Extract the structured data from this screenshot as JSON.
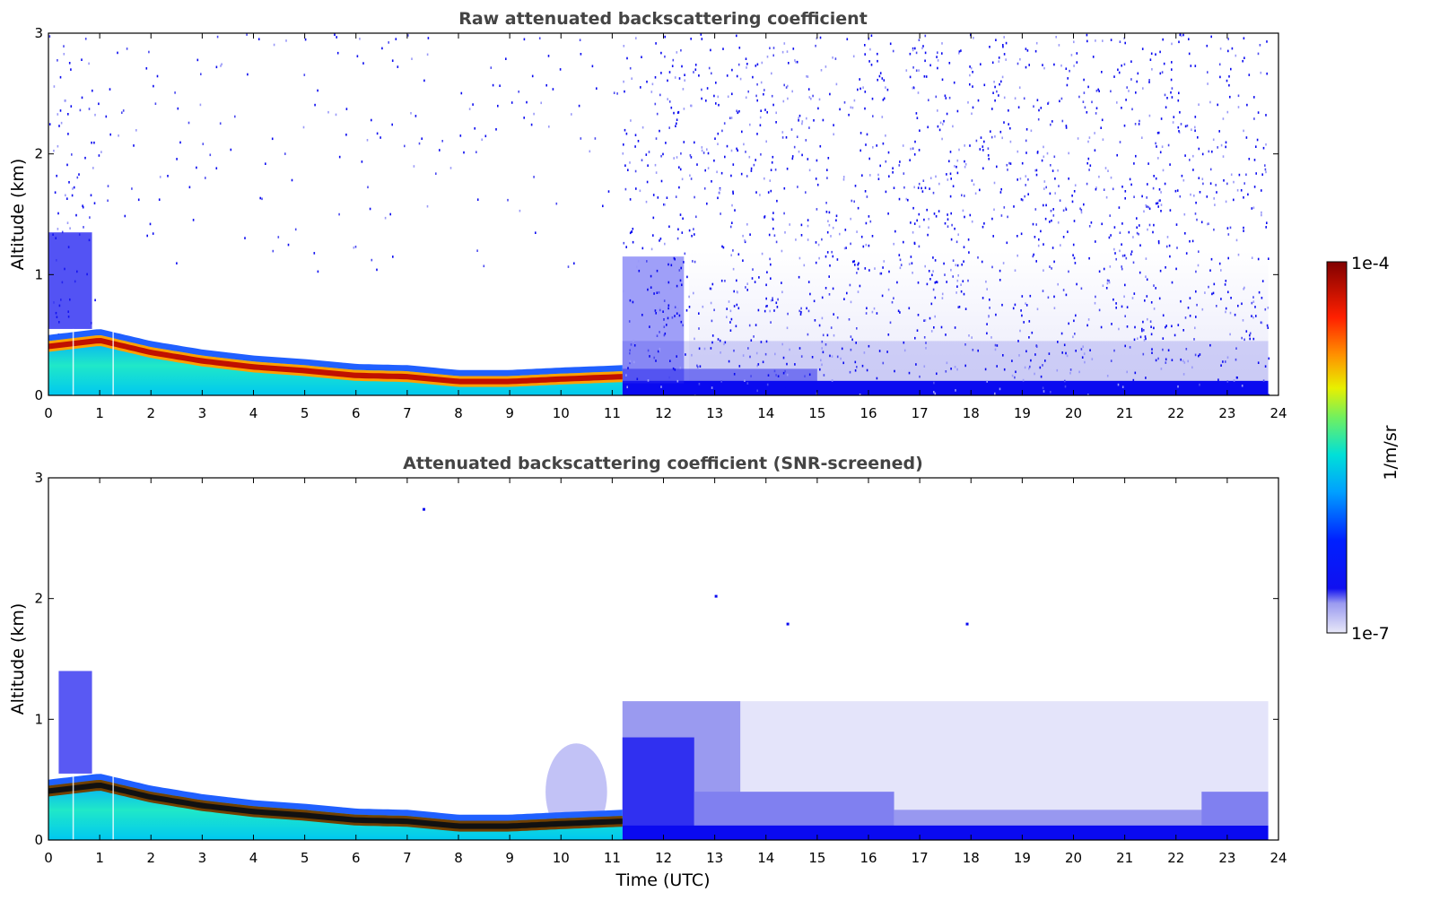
{
  "chart_data": [
    {
      "type": "heatmap",
      "title": "Raw attenuated backscattering coefficient",
      "xlabel": "",
      "ylabel": "Altitude (km)",
      "xlim": [
        0,
        24
      ],
      "ylim": [
        0,
        3
      ],
      "x_ticks": [
        "0",
        "1",
        "2",
        "3",
        "4",
        "5",
        "6",
        "7",
        "8",
        "9",
        "10",
        "11",
        "12",
        "13",
        "14",
        "15",
        "16",
        "17",
        "18",
        "19",
        "20",
        "21",
        "22",
        "23",
        "24"
      ],
      "y_ticks": [
        "0",
        "1",
        "2",
        "3"
      ],
      "features": {
        "boundary_layer_top_km": [
          [
            0.0,
            0.45
          ],
          [
            1.0,
            0.5
          ],
          [
            2.0,
            0.4
          ],
          [
            3.0,
            0.33
          ],
          [
            4.0,
            0.28
          ],
          [
            5.0,
            0.25
          ],
          [
            6.0,
            0.21
          ],
          [
            7.0,
            0.2
          ],
          [
            8.0,
            0.16
          ],
          [
            9.0,
            0.16
          ],
          [
            10.0,
            0.18
          ],
          [
            11.2,
            0.2
          ]
        ],
        "noise_transition_hour": 11.2,
        "data_end_hour": 23.8
      }
    },
    {
      "type": "heatmap",
      "title": "Attenuated backscattering coefficient (SNR-screened)",
      "xlabel": "Time (UTC)",
      "ylabel": "Altitude (km)",
      "xlim": [
        0,
        24
      ],
      "ylim": [
        0,
        3
      ],
      "x_ticks": [
        "0",
        "1",
        "2",
        "3",
        "4",
        "5",
        "6",
        "7",
        "8",
        "9",
        "10",
        "11",
        "12",
        "13",
        "14",
        "15",
        "16",
        "17",
        "18",
        "19",
        "20",
        "21",
        "22",
        "23",
        "24"
      ],
      "y_ticks": [
        "0",
        "1",
        "2",
        "3"
      ],
      "features": {
        "screened_layer_top_km": 1.15,
        "data_end_hour": 23.8
      }
    }
  ],
  "colorbar": {
    "max_label": "1e-4",
    "min_label": "1e-7",
    "unit_label": "1/m/sr",
    "colors": [
      "#e8e8f8",
      "#b8b8f0",
      "#8888f0",
      "#5050f0",
      "#0000f0",
      "#0030ff",
      "#0070ff",
      "#00b0ff",
      "#00e0e0",
      "#30f0a0",
      "#90f050",
      "#e0f000",
      "#ffc000",
      "#ff8000",
      "#ff4000",
      "#e00000",
      "#800000"
    ]
  }
}
